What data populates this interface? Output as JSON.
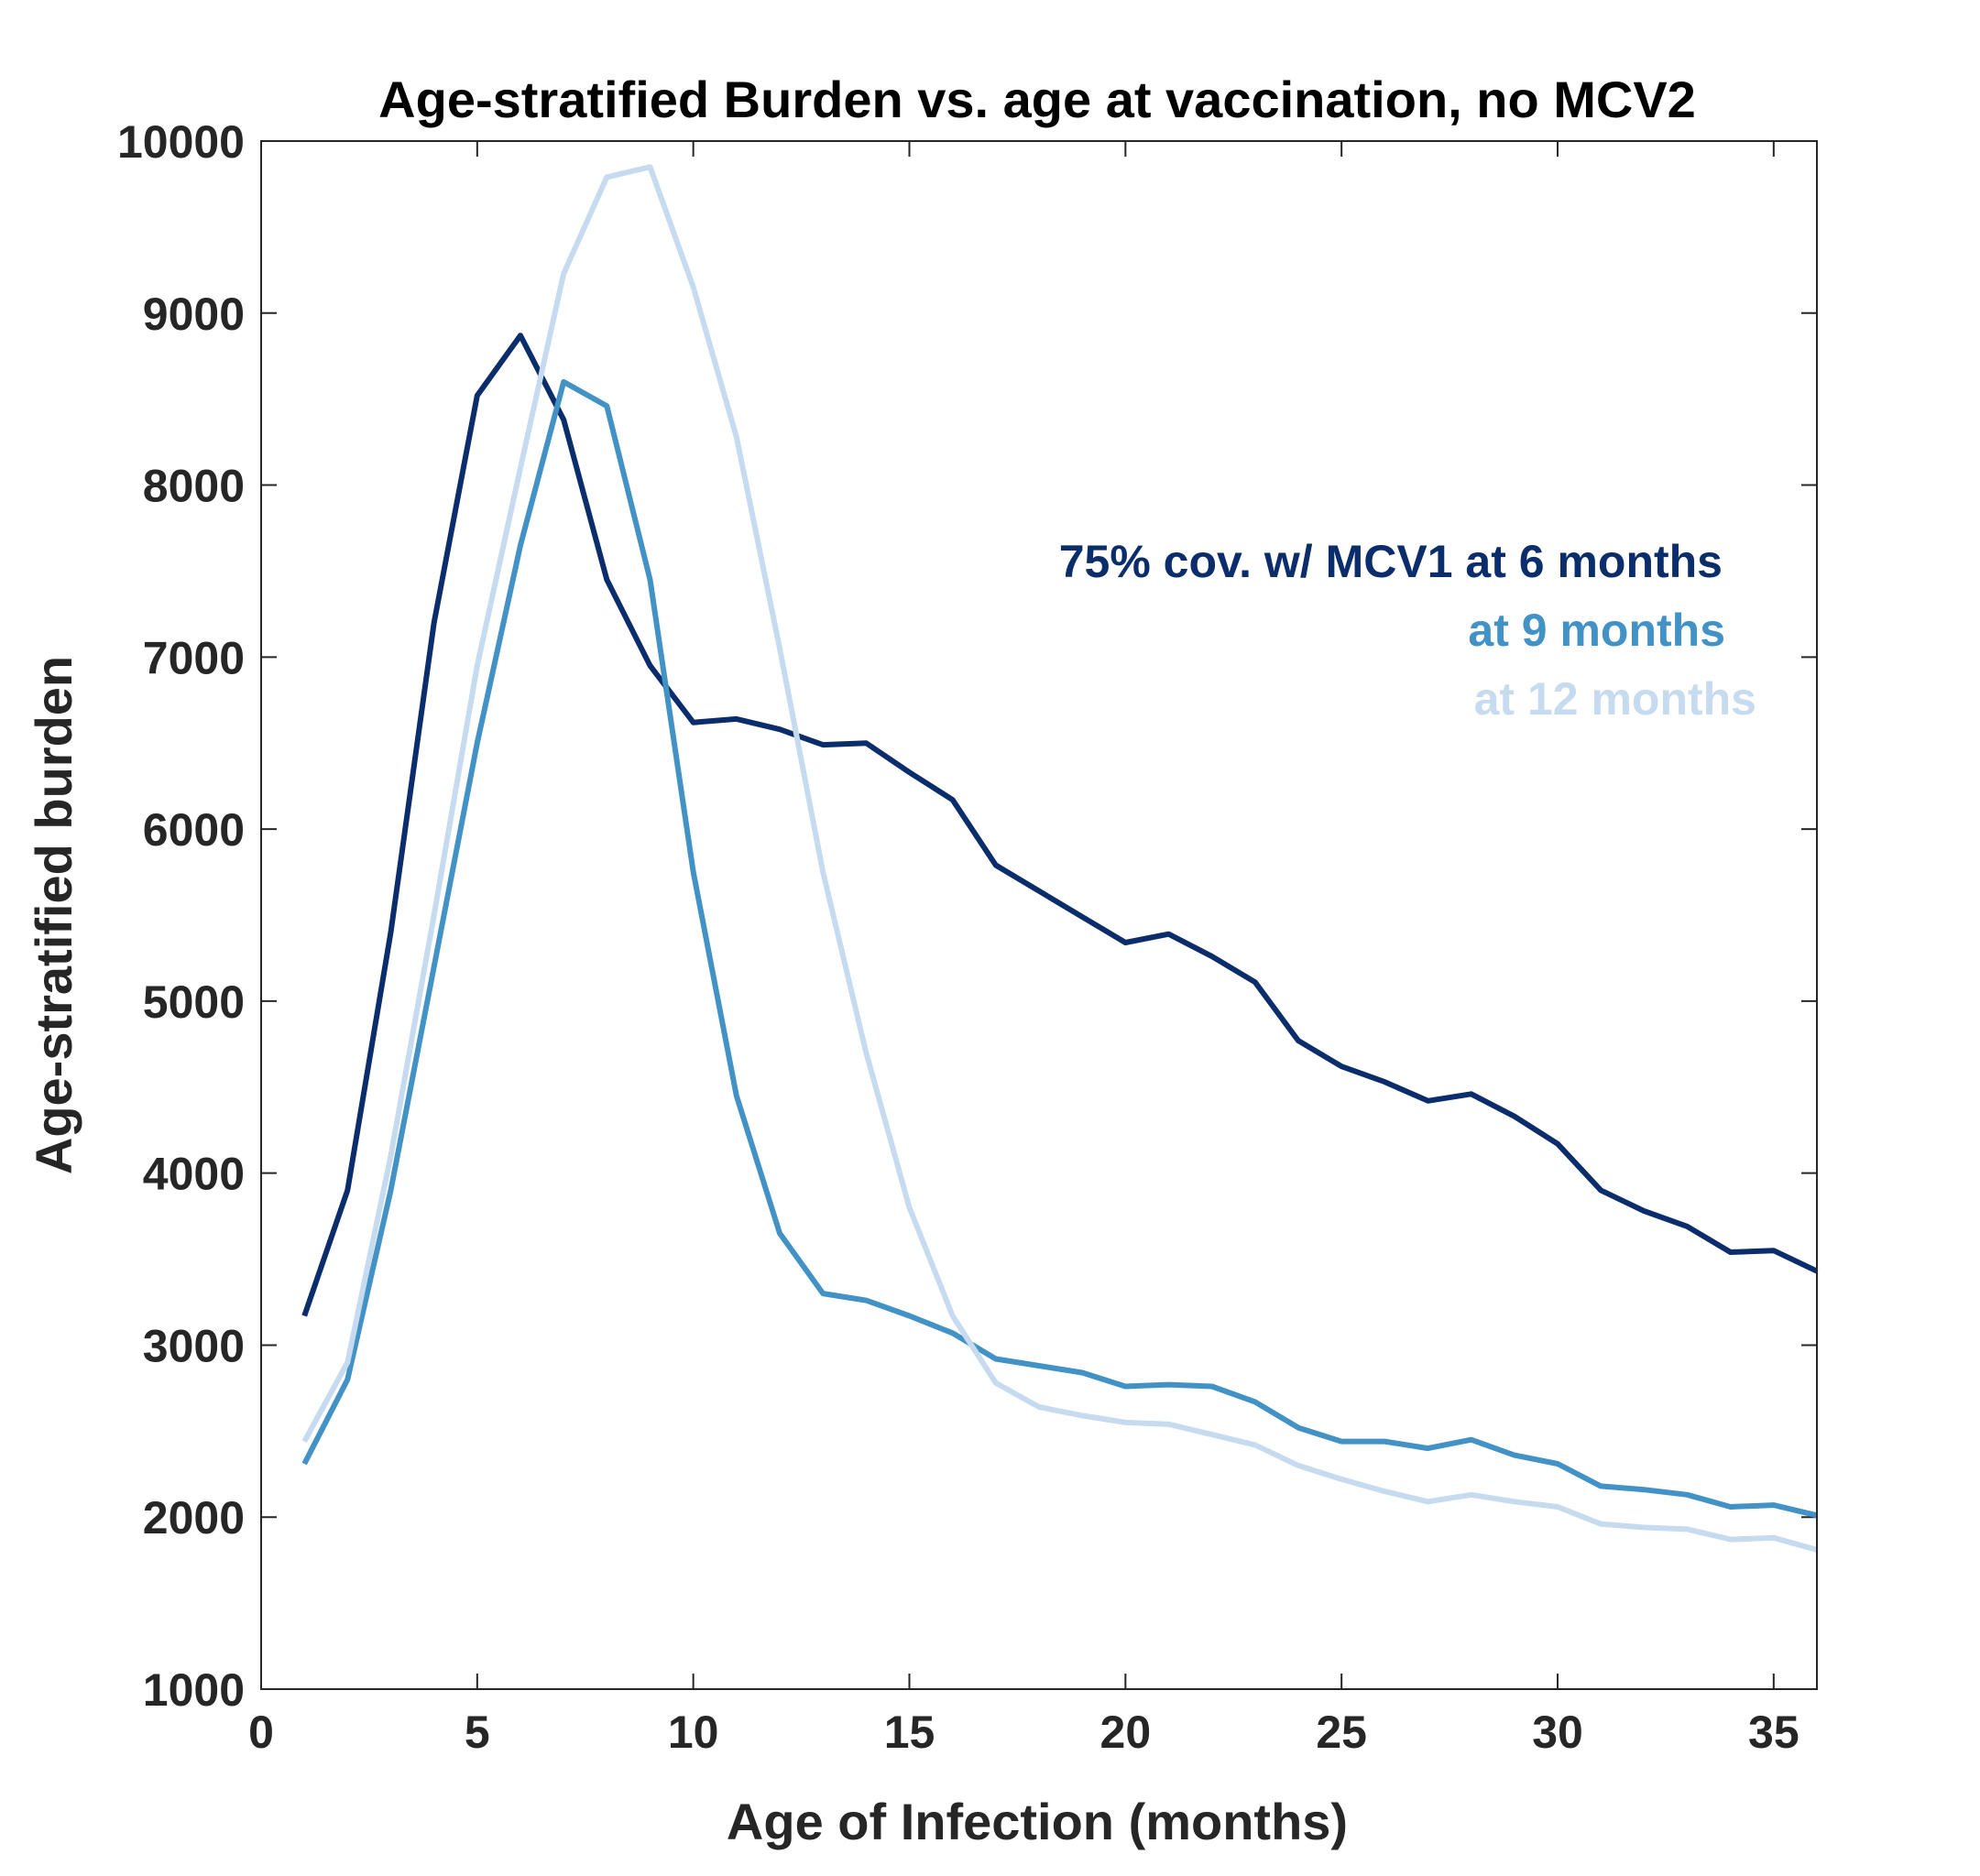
{
  "chart_data": {
    "type": "line",
    "title": "Age-stratified Burden vs. age at vaccination, no MCV2",
    "xlabel": "Age of Infection (months)",
    "ylabel": "Age-stratified burden",
    "xlim": [
      0,
      36
    ],
    "ylim": [
      1000,
      10000
    ],
    "xticks": [
      0,
      5,
      10,
      15,
      20,
      25,
      30,
      35
    ],
    "yticks": [
      1000,
      2000,
      3000,
      4000,
      5000,
      6000,
      7000,
      8000,
      9000,
      10000
    ],
    "grid": false,
    "legend_position": "upper-right inside plot",
    "x": [
      1,
      2,
      3,
      4,
      5,
      6,
      7,
      8,
      9,
      10,
      11,
      12,
      13,
      14,
      15,
      16,
      17,
      18,
      19,
      20,
      21,
      22,
      23,
      24,
      25,
      26,
      27,
      28,
      29,
      30,
      31,
      32,
      33,
      34,
      35,
      36
    ],
    "series": [
      {
        "name": "75% cov. w/ MCV1 at 6 months",
        "color": "#0b2d6b",
        "values": [
          3170,
          3900,
          5400,
          7200,
          8520,
          8870,
          8380,
          7450,
          6950,
          6620,
          6640,
          6580,
          6490,
          6500,
          6330,
          6170,
          5790,
          5640,
          5490,
          5340,
          5390,
          5260,
          5110,
          4770,
          4620,
          4530,
          4420,
          4460,
          4330,
          4170,
          3900,
          3780,
          3690,
          3540,
          3550,
          3430
        ]
      },
      {
        "name": "at 9 months",
        "color": "#4292c6",
        "values": [
          2310,
          2800,
          3900,
          5200,
          6500,
          7650,
          8600,
          8460,
          7450,
          5750,
          4450,
          3650,
          3300,
          3260,
          3170,
          3070,
          2920,
          2880,
          2840,
          2760,
          2770,
          2760,
          2670,
          2520,
          2440,
          2440,
          2400,
          2450,
          2360,
          2310,
          2180,
          2160,
          2130,
          2060,
          2070,
          2010
        ]
      },
      {
        "name": "at 12 months",
        "color": "#c6dbef",
        "values": [
          2440,
          2900,
          4100,
          5500,
          6950,
          8100,
          9230,
          9790,
          9850,
          9150,
          8280,
          7050,
          5750,
          4700,
          3800,
          3170,
          2780,
          2640,
          2590,
          2550,
          2540,
          2480,
          2420,
          2300,
          2220,
          2150,
          2090,
          2130,
          2090,
          2060,
          1960,
          1940,
          1930,
          1870,
          1880,
          1810
        ]
      }
    ]
  }
}
